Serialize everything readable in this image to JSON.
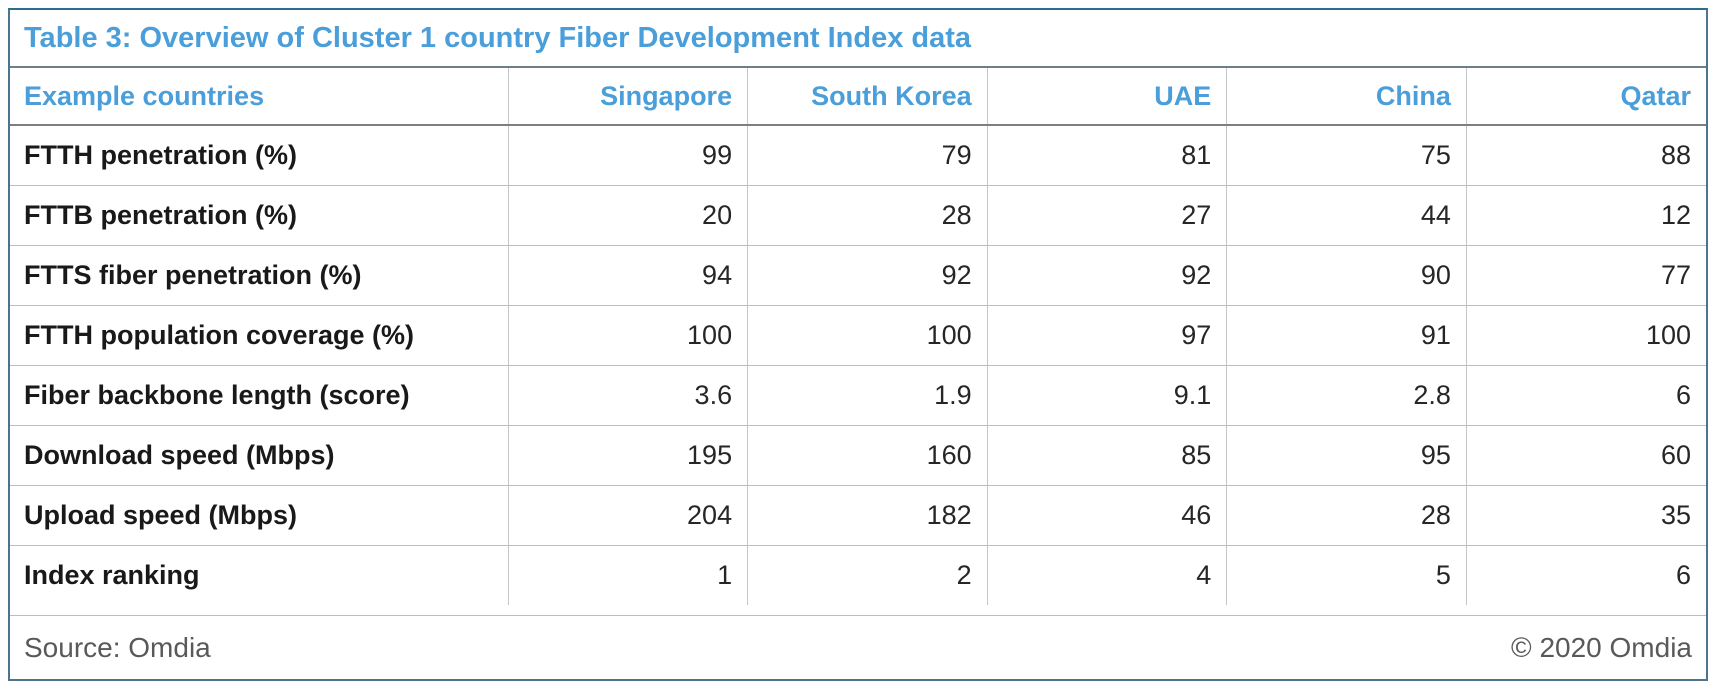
{
  "colors": {
    "accent_blue": "#4a9ed9",
    "outer_border": "#4d748b",
    "grid_gray": "#bfbfbf",
    "text_dark": "#191919",
    "muted_gray": "#595959"
  },
  "chart_data": {
    "type": "table",
    "title": "Table 3: Overview of Cluster 1 country Fiber Development Index data",
    "columns": [
      "Example countries",
      "Singapore",
      "South Korea",
      "UAE",
      "China",
      "Qatar"
    ],
    "rows": [
      {
        "label": "FTTH penetration (%)",
        "values": [
          99,
          79,
          81,
          75,
          88
        ]
      },
      {
        "label": "FTTB penetration (%)",
        "values": [
          20,
          28,
          27,
          44,
          12
        ]
      },
      {
        "label": "FTTS fiber penetration (%)",
        "values": [
          94,
          92,
          92,
          90,
          77
        ]
      },
      {
        "label": "FTTH population coverage (%)",
        "values": [
          100,
          100,
          97,
          91,
          100
        ]
      },
      {
        "label": "Fiber backbone length (score)",
        "values": [
          3.6,
          1.9,
          9.1,
          2.8,
          6
        ]
      },
      {
        "label": "Download speed (Mbps)",
        "values": [
          195,
          160,
          85,
          95,
          60
        ]
      },
      {
        "label": "Upload speed (Mbps)",
        "values": [
          204,
          182,
          46,
          28,
          35
        ]
      },
      {
        "label": "Index ranking",
        "values": [
          1,
          2,
          4,
          5,
          6
        ]
      }
    ],
    "source": "Source: Omdia",
    "copyright": "© 2020 Omdia",
    "legend_position": "none",
    "grid": true
  }
}
